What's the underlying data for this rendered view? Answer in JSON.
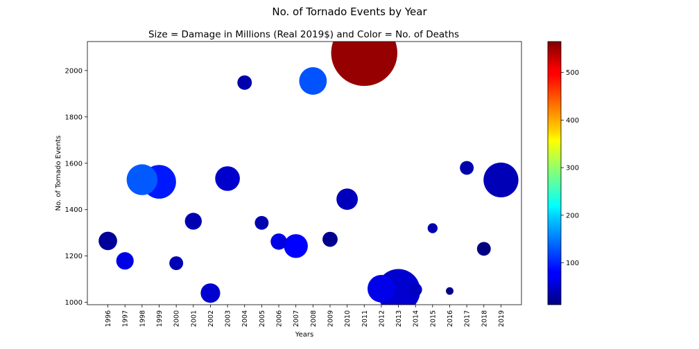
{
  "chart_data": {
    "type": "scatter",
    "title": "No. of Tornado Events by Year",
    "subtitle": "Size = Damage in Millions (Real 2019$) and Color = No. of Deaths",
    "xlabel": "Years",
    "ylabel": "No. of Tornado Events",
    "xlim": [
      1994.8,
      2020.2
    ],
    "ylim": [
      990,
      2125
    ],
    "y_ticks": [
      1000,
      1200,
      1400,
      1600,
      1800,
      2000
    ],
    "grid": false,
    "colormap": "jet",
    "colorbar": {
      "range": [
        12,
        565
      ],
      "ticks": [
        100,
        200,
        300,
        400,
        500
      ]
    },
    "categories": [
      "1996",
      "1997",
      "1998",
      "1999",
      "2000",
      "2001",
      "2002",
      "2003",
      "2004",
      "2005",
      "2006",
      "2007",
      "2008",
      "2009",
      "2010",
      "2011",
      "2012",
      "2013",
      "2014",
      "2015",
      "2016",
      "2017",
      "2018",
      "2019"
    ],
    "points": [
      {
        "year": 1996,
        "events": 1265,
        "damage": 900,
        "deaths": 26
      },
      {
        "year": 1997,
        "events": 1179,
        "damage": 800,
        "deaths": 68
      },
      {
        "year": 1998,
        "events": 1529,
        "damage": 2500,
        "deaths": 130
      },
      {
        "year": 1999,
        "events": 1520,
        "damage": 3000,
        "deaths": 94
      },
      {
        "year": 2000,
        "events": 1169,
        "damage": 500,
        "deaths": 41
      },
      {
        "year": 2001,
        "events": 1350,
        "damage": 750,
        "deaths": 40
      },
      {
        "year": 2002,
        "events": 1040,
        "damage": 1000,
        "deaths": 55
      },
      {
        "year": 2003,
        "events": 1534,
        "damage": 1600,
        "deaths": 54
      },
      {
        "year": 2004,
        "events": 1948,
        "damage": 550,
        "deaths": 36
      },
      {
        "year": 2005,
        "events": 1343,
        "damage": 500,
        "deaths": 38
      },
      {
        "year": 2006,
        "events": 1262,
        "damage": 700,
        "deaths": 67
      },
      {
        "year": 2007,
        "events": 1243,
        "damage": 1500,
        "deaths": 81
      },
      {
        "year": 2008,
        "events": 1955,
        "damage": 2000,
        "deaths": 126
      },
      {
        "year": 2009,
        "events": 1272,
        "damage": 600,
        "deaths": 21
      },
      {
        "year": 2010,
        "events": 1445,
        "damage": 1200,
        "deaths": 45
      },
      {
        "year": 2011,
        "events": 2076,
        "damage": 11500,
        "deaths": 553
      },
      {
        "year": 2012,
        "events": 1059,
        "damage": 2000,
        "deaths": 70
      },
      {
        "year": 2013,
        "events": 1050,
        "damage": 5000,
        "deaths": 55
      },
      {
        "year": 2014,
        "events": 1055,
        "damage": 450,
        "deaths": 47
      },
      {
        "year": 2015,
        "events": 1320,
        "damage": 260,
        "deaths": 36
      },
      {
        "year": 2016,
        "events": 1049,
        "damage": 150,
        "deaths": 18
      },
      {
        "year": 2017,
        "events": 1580,
        "damage": 500,
        "deaths": 35
      },
      {
        "year": 2018,
        "events": 1231,
        "damage": 500,
        "deaths": 10
      },
      {
        "year": 2019,
        "events": 1528,
        "damage": 3200,
        "deaths": 42
      }
    ]
  }
}
